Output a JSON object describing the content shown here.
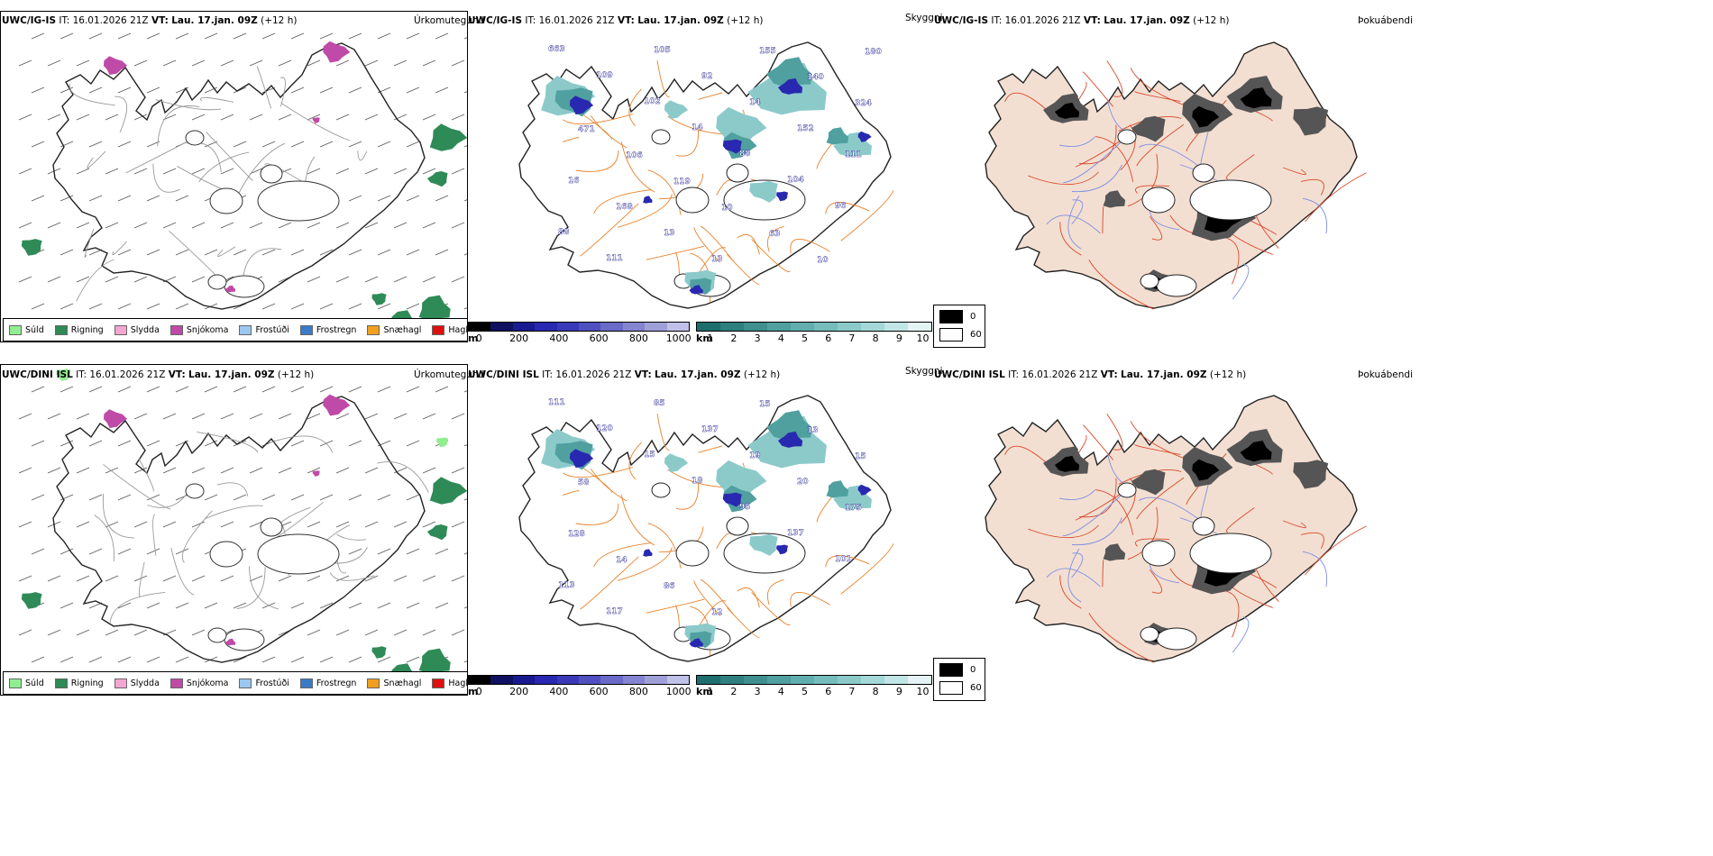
{
  "rows": [
    {
      "model": "UWC/IG-IS",
      "it_label": "IT:",
      "it_value": "16.01.2026 21Z",
      "vt_label": "VT:",
      "vt_value": "Lau. 17.jan. 09Z",
      "lead": "(+12 h)",
      "panels": {
        "type": "Úrkomutegund",
        "visibility": "Skyggni",
        "fog": "Þokuábendi"
      }
    },
    {
      "model": "UWC/DINI ISL",
      "it_label": "IT:",
      "it_value": "16.01.2026 21Z",
      "vt_label": "VT:",
      "vt_value": "Lau. 17.jan. 09Z",
      "lead": "(+12 h)",
      "panels": {
        "type": "Úrkomutegund",
        "visibility": "Skyggni",
        "fog": "Þokuábendi"
      }
    }
  ],
  "precip_legend": [
    {
      "label": "Súld",
      "color": "#90ee90"
    },
    {
      "label": "Rigning",
      "color": "#2e8b57"
    },
    {
      "label": "Slydda",
      "color": "#f4a6d0"
    },
    {
      "label": "Snjókoma",
      "color": "#c04aa8"
    },
    {
      "label": "Frostúði",
      "color": "#9cc7f0"
    },
    {
      "label": "Frostregn",
      "color": "#3a7bc8"
    },
    {
      "label": "Snæhagl",
      "color": "#f0a020"
    },
    {
      "label": "Haglél",
      "color": "#e01010"
    }
  ],
  "height_bar": {
    "unit": "m",
    "ticks": [
      "0",
      "200",
      "400",
      "600",
      "800",
      "1000"
    ],
    "colors": [
      "#000000",
      "#101060",
      "#1a1a90",
      "#2828b0",
      "#3a3ab8",
      "#5050c0",
      "#6a6ac8",
      "#8484d0",
      "#a0a0d8",
      "#c0c0e8"
    ]
  },
  "vis_bar": {
    "unit": "km",
    "ticks": [
      "1",
      "2",
      "3",
      "4",
      "5",
      "6",
      "7",
      "8",
      "9",
      "10"
    ],
    "colors": [
      "#1e6e6e",
      "#2f7f7f",
      "#3f8f8f",
      "#50a0a0",
      "#62aeae",
      "#77bcbc",
      "#8ccaca",
      "#a4d8d8",
      "#c0e6e6",
      "#e4f4f4"
    ]
  },
  "fog_legend": {
    "high": "0",
    "low": "60",
    "high_color": "#000000",
    "low_color": "#ffffff"
  },
  "ceiling_labels_top": [
    "663",
    "109",
    "102",
    "14",
    "88",
    "104",
    "96",
    "88",
    "111",
    "105",
    "92",
    "14",
    "152",
    "111",
    "16",
    "168",
    "13",
    "13",
    "155",
    "140",
    "324",
    "471",
    "106",
    "119",
    "10",
    "63",
    "10",
    "180"
  ],
  "ceiling_labels_bottom": [
    "111",
    "120",
    "15",
    "18",
    "95",
    "137",
    "101",
    "113",
    "117",
    "85",
    "137",
    "19",
    "20",
    "175",
    "128",
    "14",
    "86",
    "12",
    "15",
    "13",
    "15",
    "58"
  ]
}
